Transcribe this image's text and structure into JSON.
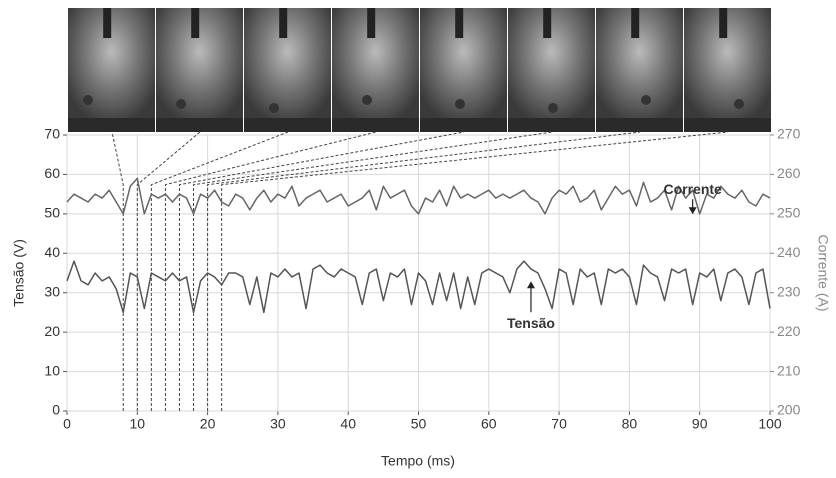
{
  "chart_data": {
    "type": "line",
    "x_label": "Tempo (ms)",
    "y_label": "Tensão (V)",
    "y2_label": "Corrente (A)",
    "xlim": [
      0,
      100
    ],
    "xticks": [
      0,
      10,
      20,
      30,
      40,
      50,
      60,
      70,
      80,
      90,
      100
    ],
    "ylim": [
      0,
      70
    ],
    "yticks": [
      0,
      10,
      20,
      30,
      40,
      50,
      60,
      70
    ],
    "y2lim": [
      200,
      270
    ],
    "y2ticks": [
      200,
      210,
      220,
      230,
      240,
      250,
      260,
      270
    ],
    "grid": true,
    "x": [
      0,
      1,
      2,
      3,
      4,
      5,
      6,
      7,
      8,
      9,
      10,
      11,
      12,
      13,
      14,
      15,
      16,
      17,
      18,
      19,
      20,
      21,
      22,
      23,
      24,
      25,
      26,
      27,
      28,
      29,
      30,
      31,
      32,
      33,
      34,
      35,
      36,
      37,
      38,
      39,
      40,
      41,
      42,
      43,
      44,
      45,
      46,
      47,
      48,
      49,
      50,
      51,
      52,
      53,
      54,
      55,
      56,
      57,
      58,
      59,
      60,
      61,
      62,
      63,
      64,
      65,
      66,
      67,
      68,
      69,
      70,
      71,
      72,
      73,
      74,
      75,
      76,
      77,
      78,
      79,
      80,
      81,
      82,
      83,
      84,
      85,
      86,
      87,
      88,
      89,
      90,
      91,
      92,
      93,
      94,
      95,
      96,
      97,
      98,
      99,
      100
    ],
    "series": [
      {
        "name": "Tensão",
        "color": "#555555",
        "values": [
          33,
          38,
          33,
          32,
          35,
          33,
          34,
          31,
          25,
          35,
          34,
          26,
          35,
          34,
          33,
          35,
          33,
          34,
          25,
          33,
          35,
          34,
          32,
          35,
          35,
          34,
          27,
          34,
          25,
          35,
          34,
          36,
          34,
          35,
          26,
          36,
          37,
          35,
          34,
          36,
          35,
          34,
          27,
          35,
          36,
          28,
          35,
          34,
          36,
          27,
          35,
          33,
          27,
          35,
          28,
          35,
          26,
          34,
          27,
          35,
          36,
          35,
          34,
          30,
          36,
          38,
          36,
          35,
          31,
          26,
          36,
          35,
          27,
          36,
          34,
          35,
          27,
          36,
          35,
          36,
          34,
          27,
          37,
          35,
          34,
          28,
          36,
          35,
          36,
          27,
          35,
          34,
          36,
          28,
          35,
          36,
          34,
          27,
          35,
          36,
          26
        ]
      },
      {
        "name": "Corrente",
        "color": "#666666",
        "axis": "y2",
        "values": [
          253,
          255,
          254,
          253,
          255,
          254,
          256,
          253,
          250,
          257,
          259,
          250,
          255,
          254,
          255,
          253,
          255,
          254,
          250,
          255,
          254,
          256,
          253,
          252,
          255,
          254,
          251,
          254,
          256,
          253,
          255,
          254,
          257,
          252,
          254,
          255,
          256,
          253,
          254,
          255,
          252,
          253,
          254,
          256,
          251,
          257,
          254,
          255,
          256,
          252,
          250,
          254,
          253,
          256,
          252,
          257,
          254,
          255,
          254,
          255,
          256,
          254,
          255,
          254,
          255,
          256,
          254,
          253,
          250,
          254,
          256,
          255,
          257,
          253,
          254,
          256,
          251,
          254,
          257,
          255,
          256,
          252,
          258,
          253,
          254,
          256,
          251,
          257,
          254,
          256,
          250,
          255,
          254,
          257,
          255,
          254,
          256,
          253,
          252,
          255,
          254
        ]
      }
    ],
    "frame_times": [
      8,
      10,
      12,
      14,
      16,
      18,
      20,
      22
    ],
    "annotations": [
      {
        "text": "Corrente",
        "x": 89,
        "y": 256
      },
      {
        "text": "Tensão",
        "x": 66,
        "y": 22
      }
    ]
  }
}
